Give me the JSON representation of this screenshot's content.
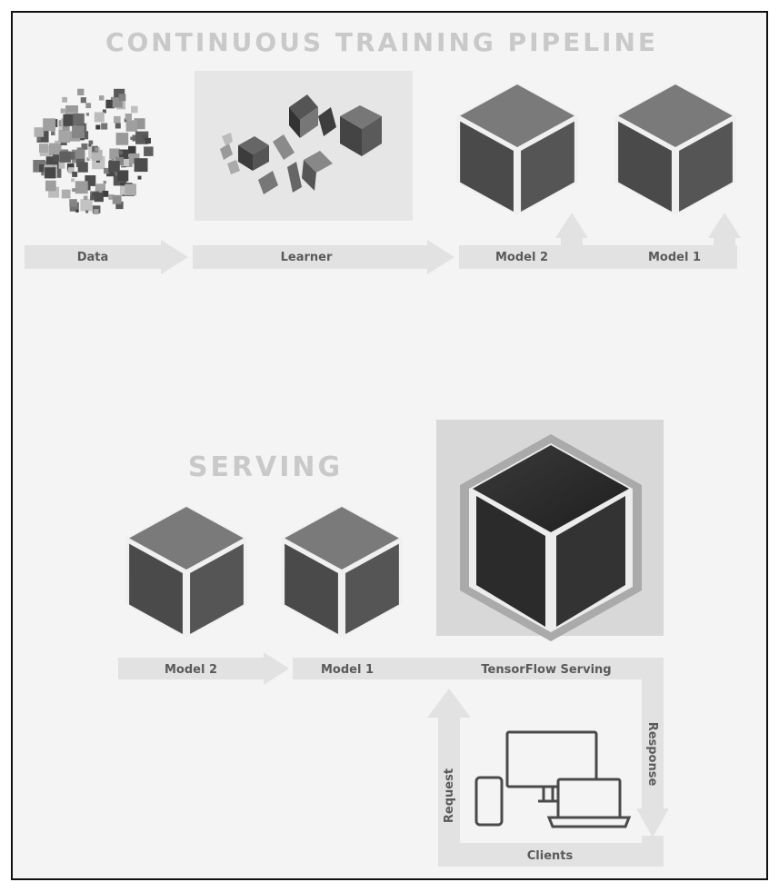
{
  "training": {
    "title": "CONTINUOUS TRAINING PIPELINE",
    "labels": {
      "data": "Data",
      "learner": "Learner",
      "model2": "Model 2",
      "model1": "Model 1"
    }
  },
  "serving": {
    "title": "SERVING",
    "labels": {
      "model2": "Model 2",
      "model1": "Model 1",
      "tensorflow_serving": "TensorFlow Serving"
    }
  },
  "clients": {
    "label": "Clients",
    "request": "Request",
    "response": "Response"
  },
  "icons": [
    "data-scatter-icon",
    "learner-cubes-icon",
    "model-cube-icon",
    "tensorflow-serving-cube-icon",
    "monitor-icon",
    "laptop-icon",
    "phone-icon"
  ],
  "colors": {
    "background": "#f4f4f4",
    "arrow": "#e2e2e2",
    "cube_dark": "#4a4a4a",
    "heading": "#c9c9c9"
  }
}
